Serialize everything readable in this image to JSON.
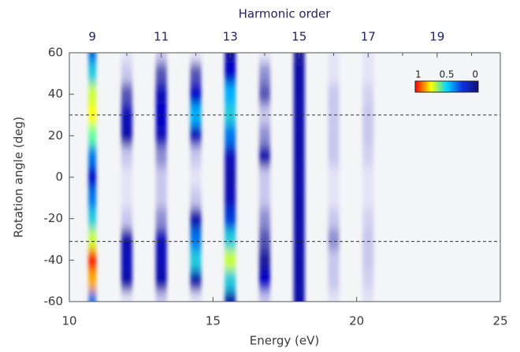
{
  "chart_data": {
    "type": "heatmap",
    "x_label": "Energy (eV)",
    "y_label": "Rotation angle (deg)",
    "x2_label": "Harmonic order",
    "xlim": [
      10,
      25
    ],
    "xticks": [
      10,
      15,
      20,
      25
    ],
    "ylim": [
      -60,
      60
    ],
    "yticks": [
      -60,
      -40,
      -20,
      0,
      20,
      40,
      60
    ],
    "x2ticks": [
      {
        "value": 10.8,
        "label": "9"
      },
      {
        "value": 13.2,
        "label": "11"
      },
      {
        "value": 15.6,
        "label": "13"
      },
      {
        "value": 18.0,
        "label": "15"
      },
      {
        "value": 20.4,
        "label": "17"
      },
      {
        "value": 22.8,
        "label": "19"
      }
    ],
    "x2minorticks": [
      12.0,
      14.4,
      16.8,
      19.2,
      21.6,
      24.0
    ],
    "hlines": [
      30,
      -31
    ],
    "colorbar_ticks": [
      1,
      0.5,
      0
    ],
    "x": [
      10.8,
      12.0,
      13.2,
      14.4,
      15.6,
      16.8,
      18.0,
      19.2,
      20.4
    ],
    "y": [
      -60,
      -50,
      -40,
      -30,
      -20,
      -10,
      0,
      10,
      20,
      30,
      40,
      50,
      60
    ],
    "values": [
      [
        0.5,
        0.05,
        0.1,
        0.05,
        0.3,
        0.1,
        0.3,
        0.05,
        0.05
      ],
      [
        0.9,
        0.3,
        0.3,
        0.3,
        0.6,
        0.4,
        0.3,
        0.1,
        0.08
      ],
      [
        1.0,
        0.35,
        0.35,
        0.6,
        0.8,
        0.25,
        0.3,
        0.1,
        0.1
      ],
      [
        0.8,
        0.3,
        0.35,
        0.5,
        0.6,
        0.2,
        0.3,
        0.15,
        0.1
      ],
      [
        0.6,
        0.1,
        0.15,
        0.3,
        0.45,
        0.15,
        0.3,
        0.1,
        0.08
      ],
      [
        0.5,
        0.05,
        0.1,
        0.1,
        0.35,
        0.1,
        0.3,
        0.05,
        0.05
      ],
      [
        0.4,
        0.05,
        0.1,
        0.05,
        0.3,
        0.1,
        0.3,
        0.05,
        0.05
      ],
      [
        0.5,
        0.1,
        0.15,
        0.1,
        0.35,
        0.3,
        0.3,
        0.1,
        0.08
      ],
      [
        0.7,
        0.3,
        0.35,
        0.35,
        0.5,
        0.15,
        0.3,
        0.1,
        0.1
      ],
      [
        0.85,
        0.35,
        0.4,
        0.55,
        0.6,
        0.1,
        0.3,
        0.1,
        0.1
      ],
      [
        0.8,
        0.2,
        0.35,
        0.4,
        0.55,
        0.2,
        0.3,
        0.1,
        0.08
      ],
      [
        0.6,
        0.1,
        0.2,
        0.2,
        0.4,
        0.15,
        0.3,
        0.05,
        0.05
      ],
      [
        0.5,
        0.05,
        0.1,
        0.05,
        0.3,
        0.05,
        0.25,
        0.05,
        0.05
      ]
    ]
  }
}
